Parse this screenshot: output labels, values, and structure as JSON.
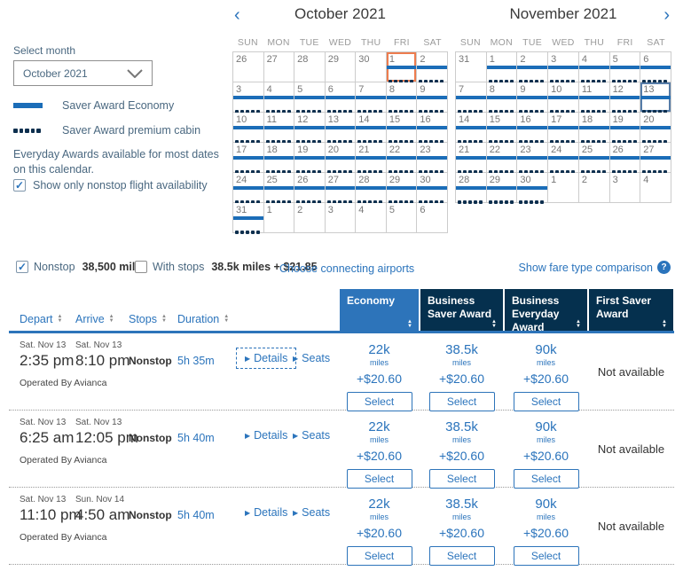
{
  "colors": {
    "link": "#2b74bc",
    "bar": "#1b6db8",
    "dot": "#0d2f4e",
    "navy": "#05304e",
    "econ": "#2d74ba",
    "today": "#ed7c4e",
    "selected": "#567ca8"
  },
  "sidebar": {
    "select_month_label": "Select month",
    "month_value": "October 2021",
    "legend_bar_label": "Saver Award Economy",
    "legend_dots_label": "Saver Award premium cabin",
    "note": "Everyday Awards available for most dates on this calendar.",
    "nonstop_checkbox_label": "Show only nonstop flight availability",
    "nonstop_checkbox_checked": true,
    "check_glyph": "✓"
  },
  "calendars": [
    {
      "title": "October 2021",
      "nav_prev": "‹",
      "day_headers": [
        "SUN",
        "MON",
        "TUE",
        "WED",
        "THU",
        "FRI",
        "SAT"
      ],
      "weeks": [
        [
          {
            "d": 26,
            "out": true
          },
          {
            "d": 27,
            "out": true
          },
          {
            "d": 28,
            "out": true
          },
          {
            "d": 29,
            "out": true
          },
          {
            "d": 30,
            "out": true
          },
          {
            "d": 1,
            "avail": true,
            "mark": "today"
          },
          {
            "d": 2,
            "avail": true
          }
        ],
        [
          {
            "d": 3,
            "avail": true
          },
          {
            "d": 4,
            "avail": true
          },
          {
            "d": 5,
            "avail": true
          },
          {
            "d": 6,
            "avail": true
          },
          {
            "d": 7,
            "avail": true
          },
          {
            "d": 8,
            "avail": true
          },
          {
            "d": 9,
            "avail": true
          }
        ],
        [
          {
            "d": 10,
            "avail": true
          },
          {
            "d": 11,
            "avail": true
          },
          {
            "d": 12,
            "avail": true
          },
          {
            "d": 13,
            "avail": true
          },
          {
            "d": 14,
            "avail": true
          },
          {
            "d": 15,
            "avail": true
          },
          {
            "d": 16,
            "avail": true
          }
        ],
        [
          {
            "d": 17,
            "avail": true
          },
          {
            "d": 18,
            "avail": true
          },
          {
            "d": 19,
            "avail": true
          },
          {
            "d": 20,
            "avail": true
          },
          {
            "d": 21,
            "avail": true
          },
          {
            "d": 22,
            "avail": true
          },
          {
            "d": 23,
            "avail": true
          }
        ],
        [
          {
            "d": 24,
            "avail": true
          },
          {
            "d": 25,
            "avail": true
          },
          {
            "d": 26,
            "avail": true
          },
          {
            "d": 27,
            "avail": true
          },
          {
            "d": 28,
            "avail": true
          },
          {
            "d": 29,
            "avail": true
          },
          {
            "d": 30,
            "avail": true
          }
        ],
        [
          {
            "d": 31,
            "avail": true
          },
          {
            "d": 1,
            "out": true
          },
          {
            "d": 2,
            "out": true
          },
          {
            "d": 3,
            "out": true
          },
          {
            "d": 4,
            "out": true
          },
          {
            "d": 5,
            "out": true
          },
          {
            "d": 6,
            "out": true
          }
        ]
      ]
    },
    {
      "title": "November 2021",
      "nav_next": "›",
      "day_headers": [
        "SUN",
        "MON",
        "TUE",
        "WED",
        "THU",
        "FRI",
        "SAT"
      ],
      "weeks": [
        [
          {
            "d": 31,
            "out": true
          },
          {
            "d": 1,
            "avail": true
          },
          {
            "d": 2,
            "avail": true
          },
          {
            "d": 3,
            "avail": true
          },
          {
            "d": 4,
            "avail": true
          },
          {
            "d": 5,
            "avail": true
          },
          {
            "d": 6,
            "avail": true
          }
        ],
        [
          {
            "d": 7,
            "avail": true
          },
          {
            "d": 8,
            "avail": true
          },
          {
            "d": 9,
            "avail": true
          },
          {
            "d": 10,
            "avail": true
          },
          {
            "d": 11,
            "avail": true
          },
          {
            "d": 12,
            "avail": true
          },
          {
            "d": 13,
            "avail": true,
            "mark": "selected"
          }
        ],
        [
          {
            "d": 14,
            "avail": true
          },
          {
            "d": 15,
            "avail": true
          },
          {
            "d": 16,
            "avail": true
          },
          {
            "d": 17,
            "avail": true
          },
          {
            "d": 18,
            "avail": true
          },
          {
            "d": 19,
            "avail": true
          },
          {
            "d": 20,
            "avail": true
          }
        ],
        [
          {
            "d": 21,
            "avail": true
          },
          {
            "d": 22,
            "avail": true
          },
          {
            "d": 23,
            "avail": true
          },
          {
            "d": 24,
            "avail": true
          },
          {
            "d": 25,
            "avail": true
          },
          {
            "d": 26,
            "avail": true
          },
          {
            "d": 27,
            "avail": true
          }
        ],
        [
          {
            "d": 28,
            "avail": true
          },
          {
            "d": 29,
            "avail": true
          },
          {
            "d": 30,
            "avail": true
          },
          {
            "d": 1,
            "out": true
          },
          {
            "d": 2,
            "out": true
          },
          {
            "d": 3,
            "out": true
          },
          {
            "d": 4,
            "out": true
          }
        ]
      ]
    }
  ],
  "filter_bar": {
    "nonstop_label": "Nonstop",
    "nonstop_miles": "38,500 miles",
    "nonstop_checked": true,
    "with_stops_label": "With stops",
    "with_stops_miles": "38.5k miles + $21.85",
    "with_stops_checked": false,
    "connecting_airports_link": "Choose connecting airports",
    "fare_comparison_link": "Show fare type comparison",
    "help_glyph": "?",
    "check_glyph": "✓"
  },
  "table": {
    "left_headers": [
      {
        "label": "Depart"
      },
      {
        "label": "Arrive"
      },
      {
        "label": "Stops"
      },
      {
        "label": "Duration"
      }
    ],
    "fare_headers": [
      {
        "label": "Economy",
        "selected": true
      },
      {
        "label": "Business Saver Award",
        "selected": false
      },
      {
        "label": "Business Everyday Award",
        "selected": false
      },
      {
        "label": "First Saver Award",
        "selected": false
      }
    ],
    "select_label": "Select",
    "not_available_text": "Not available",
    "details_label": "Details",
    "seats_label": "Seats",
    "link_arrow_glyph": "▶",
    "rows": [
      {
        "depart_date": "Sat. Nov 13",
        "depart_time": "2:35 pm",
        "arrive_date": "Sat. Nov 13",
        "arrive_time": "8:10 pm",
        "stops": "Nonstop",
        "duration": "5h 35m",
        "operated_by": "Operated By Avianca",
        "details_focused": true,
        "fares": [
          {
            "miles": "22k",
            "unit": "miles",
            "fees": "+$20.60"
          },
          {
            "miles": "38.5k",
            "unit": "miles",
            "fees": "+$20.60"
          },
          {
            "miles": "90k",
            "unit": "miles",
            "fees": "+$20.60"
          },
          {
            "not_available": true
          }
        ]
      },
      {
        "depart_date": "Sat. Nov 13",
        "depart_time": "6:25 am",
        "arrive_date": "Sat. Nov 13",
        "arrive_time": "12:05 pm",
        "stops": "Nonstop",
        "duration": "5h 40m",
        "operated_by": "Operated By Avianca",
        "details_focused": false,
        "fares": [
          {
            "miles": "22k",
            "unit": "miles",
            "fees": "+$20.60"
          },
          {
            "miles": "38.5k",
            "unit": "miles",
            "fees": "+$20.60"
          },
          {
            "miles": "90k",
            "unit": "miles",
            "fees": "+$20.60"
          },
          {
            "not_available": true
          }
        ]
      },
      {
        "depart_date": "Sat. Nov 13",
        "depart_time": "11:10 pm",
        "arrive_date": "Sun. Nov 14",
        "arrive_time": "4:50 am",
        "stops": "Nonstop",
        "duration": "5h 40m",
        "operated_by": "Operated By Avianca",
        "details_focused": false,
        "fares": [
          {
            "miles": "22k",
            "unit": "miles",
            "fees": "+$20.60"
          },
          {
            "miles": "38.5k",
            "unit": "miles",
            "fees": "+$20.60"
          },
          {
            "miles": "90k",
            "unit": "miles",
            "fees": "+$20.60"
          },
          {
            "not_available": true
          }
        ]
      }
    ]
  }
}
